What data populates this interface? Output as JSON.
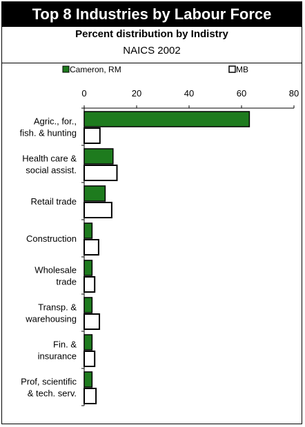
{
  "title": "Top 8 Industries by Labour Force",
  "subtitle": "Percent distribution by Indistry",
  "subtitle2": "NAICS 2002",
  "colors": {
    "series1": "#1e7b1e",
    "series2": "#ffffff",
    "stroke": "#000000"
  },
  "chart_data": {
    "type": "bar",
    "orientation": "horizontal",
    "categories": [
      [
        "Agric., for.,",
        "fish. & hunting"
      ],
      [
        "Health care &",
        "social assist."
      ],
      [
        "Retail trade"
      ],
      [
        "Construction"
      ],
      [
        "Wholesale",
        "trade"
      ],
      [
        "Transp. &",
        "warehousing"
      ],
      [
        "Fin. &",
        "insurance"
      ],
      [
        "Prof, scientific",
        "& tech. serv."
      ]
    ],
    "series": [
      {
        "name": "Cameron, RM",
        "values": [
          63,
          11,
          8,
          3,
          3,
          3,
          3,
          3
        ]
      },
      {
        "name": "MB",
        "values": [
          6,
          12.5,
          10.5,
          5.5,
          4,
          5.8,
          4,
          4.5
        ]
      }
    ],
    "xlim": [
      0,
      80
    ],
    "xticks": [
      "0",
      "20",
      "40",
      "60",
      "80"
    ],
    "xaxis_position": "top",
    "legend_position": "top",
    "grid": false
  }
}
